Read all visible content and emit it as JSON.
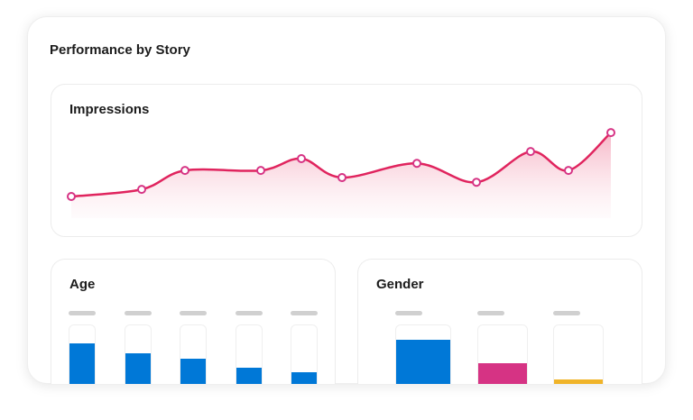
{
  "title": "Performance by Story",
  "impressions": {
    "title": "Impressions",
    "chart_data": {
      "type": "line",
      "values": [
        28,
        31,
        39,
        39,
        44,
        36,
        42,
        34,
        47,
        39,
        55
      ],
      "line_color": "#e0245e",
      "marker_color": "#d63384",
      "area_fill": "gradient"
    }
  },
  "age": {
    "title": "Age",
    "chart_data": {
      "type": "bar",
      "levels": [
        0.75,
        0.6,
        0.52,
        0.38,
        0.31
      ],
      "color": "#0078d7"
    }
  },
  "gender": {
    "title": "Gender",
    "chart_data": {
      "type": "bar",
      "levels": [
        0.8,
        0.45,
        0.2
      ],
      "colors": [
        "#0078d7",
        "#d63384",
        "#f0b429"
      ]
    }
  }
}
